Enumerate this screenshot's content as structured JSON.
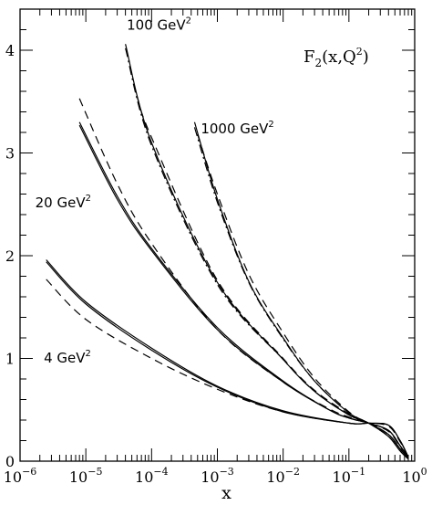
{
  "chart_data": {
    "type": "line",
    "title": "",
    "xlabel": "x",
    "ylabel": "",
    "xscale": "log",
    "xlim": [
      1e-06,
      1
    ],
    "ylim": [
      0,
      4.4
    ],
    "grid": false,
    "xticks": [
      {
        "base": "10",
        "exp": "−6",
        "value": 1e-06
      },
      {
        "base": "10",
        "exp": "−5",
        "value": 1e-05
      },
      {
        "base": "10",
        "exp": "−4",
        "value": 0.0001
      },
      {
        "base": "10",
        "exp": "−3",
        "value": 0.001
      },
      {
        "base": "10",
        "exp": "−2",
        "value": 0.01
      },
      {
        "base": "10",
        "exp": "−1",
        "value": 0.1
      },
      {
        "base": "10",
        "exp": "0",
        "value": 1
      }
    ],
    "yticks": [
      {
        "label": "0",
        "value": 0
      },
      {
        "label": "1",
        "value": 1
      },
      {
        "label": "2",
        "value": 2
      },
      {
        "label": "3",
        "value": 3
      },
      {
        "label": "4",
        "value": 4
      }
    ],
    "function_label": {
      "base": "F",
      "sub": "2",
      "args": "(x,Q",
      "sup": "2",
      "close": ")"
    },
    "annotations": [
      {
        "text": "100 GeV",
        "sup": "2",
        "x": 4.2e-05,
        "y": 4.2
      },
      {
        "text": "1000 GeV",
        "sup": "2",
        "x": 0.00056,
        "y": 3.19
      },
      {
        "text": "20 GeV",
        "sup": "2",
        "x": 1.7e-06,
        "y": 2.47
      },
      {
        "text": "4 GeV",
        "sup": "2",
        "x": 2.3e-06,
        "y": 0.96
      }
    ],
    "series": [
      {
        "style": "solid",
        "group": "4",
        "x": [
          2.5e-06,
          1e-05,
          0.0001,
          0.001,
          0.01,
          0.1,
          0.2,
          0.4,
          0.6,
          0.8
        ],
        "y": [
          1.94,
          1.53,
          1.08,
          0.72,
          0.48,
          0.37,
          0.37,
          0.35,
          0.2,
          0.04
        ]
      },
      {
        "style": "solid",
        "group": "4",
        "x": [
          2.5e-06,
          1e-05,
          0.0001,
          0.001,
          0.01,
          0.1,
          0.2,
          0.4,
          0.6,
          0.8
        ],
        "y": [
          1.96,
          1.55,
          1.1,
          0.73,
          0.49,
          0.37,
          0.37,
          0.35,
          0.2,
          0.04
        ]
      },
      {
        "style": "dashed",
        "group": "4",
        "x": [
          2.5e-06,
          1e-05,
          0.0001,
          0.001,
          0.01,
          0.1,
          0.2,
          0.4,
          0.6,
          0.8
        ],
        "y": [
          1.77,
          1.38,
          1.0,
          0.7,
          0.48,
          0.37,
          0.37,
          0.34,
          0.19,
          0.04
        ]
      },
      {
        "style": "solid",
        "group": "20",
        "x": [
          8e-06,
          3e-05,
          0.0001,
          0.001,
          0.01,
          0.05,
          0.1,
          0.2,
          0.4,
          0.6,
          0.8
        ],
        "y": [
          3.27,
          2.55,
          2.05,
          1.28,
          0.77,
          0.5,
          0.42,
          0.37,
          0.3,
          0.15,
          0.04
        ]
      },
      {
        "style": "solid",
        "group": "20",
        "x": [
          8e-06,
          3e-05,
          0.0001,
          0.001,
          0.01,
          0.05,
          0.1,
          0.2,
          0.4,
          0.6,
          0.8
        ],
        "y": [
          3.3,
          2.58,
          2.07,
          1.3,
          0.78,
          0.5,
          0.42,
          0.37,
          0.3,
          0.15,
          0.04
        ]
      },
      {
        "style": "dashed",
        "group": "20",
        "x": [
          8e-06,
          3e-05,
          0.0001,
          0.001,
          0.01,
          0.05,
          0.1,
          0.2,
          0.4,
          0.6,
          0.8
        ],
        "y": [
          3.53,
          2.7,
          2.12,
          1.28,
          0.77,
          0.51,
          0.43,
          0.37,
          0.29,
          0.14,
          0.04
        ]
      },
      {
        "style": "solid",
        "group": "100",
        "x": [
          4e-05,
          0.0001,
          0.001,
          0.01,
          0.03,
          0.1,
          0.2,
          0.4,
          0.6,
          0.8
        ],
        "y": [
          4.06,
          3.1,
          1.74,
          0.99,
          0.68,
          0.45,
          0.37,
          0.26,
          0.12,
          0.03
        ]
      },
      {
        "style": "dashdot",
        "group": "100",
        "x": [
          4e-05,
          0.0001,
          0.001,
          0.01,
          0.03,
          0.1,
          0.2,
          0.4,
          0.6,
          0.8
        ],
        "y": [
          4.02,
          3.07,
          1.72,
          0.99,
          0.68,
          0.45,
          0.37,
          0.26,
          0.12,
          0.03
        ]
      },
      {
        "style": "dashed",
        "group": "100",
        "x": [
          6e-05,
          0.0001,
          0.001,
          0.01,
          0.03,
          0.1,
          0.2,
          0.4,
          0.6,
          0.8
        ],
        "y": [
          3.55,
          3.15,
          1.76,
          1.0,
          0.69,
          0.46,
          0.37,
          0.26,
          0.12,
          0.03
        ]
      },
      {
        "style": "solid",
        "group": "1000",
        "x": [
          0.00045,
          0.001,
          0.003,
          0.01,
          0.03,
          0.1,
          0.2,
          0.4,
          0.6,
          0.8
        ],
        "y": [
          3.3,
          2.55,
          1.75,
          1.2,
          0.78,
          0.47,
          0.37,
          0.24,
          0.1,
          0.02
        ]
      },
      {
        "style": "dashdot",
        "group": "1000",
        "x": [
          0.00045,
          0.001,
          0.003,
          0.01,
          0.03,
          0.1,
          0.2,
          0.4,
          0.6,
          0.8
        ],
        "y": [
          3.25,
          2.52,
          1.74,
          1.19,
          0.78,
          0.47,
          0.37,
          0.24,
          0.1,
          0.02
        ]
      },
      {
        "style": "dashed",
        "group": "1000",
        "x": [
          0.0005,
          0.001,
          0.003,
          0.01,
          0.03,
          0.1,
          0.2,
          0.4,
          0.6,
          0.8
        ],
        "y": [
          3.18,
          2.6,
          1.82,
          1.25,
          0.81,
          0.48,
          0.37,
          0.24,
          0.1,
          0.02
        ]
      }
    ]
  }
}
